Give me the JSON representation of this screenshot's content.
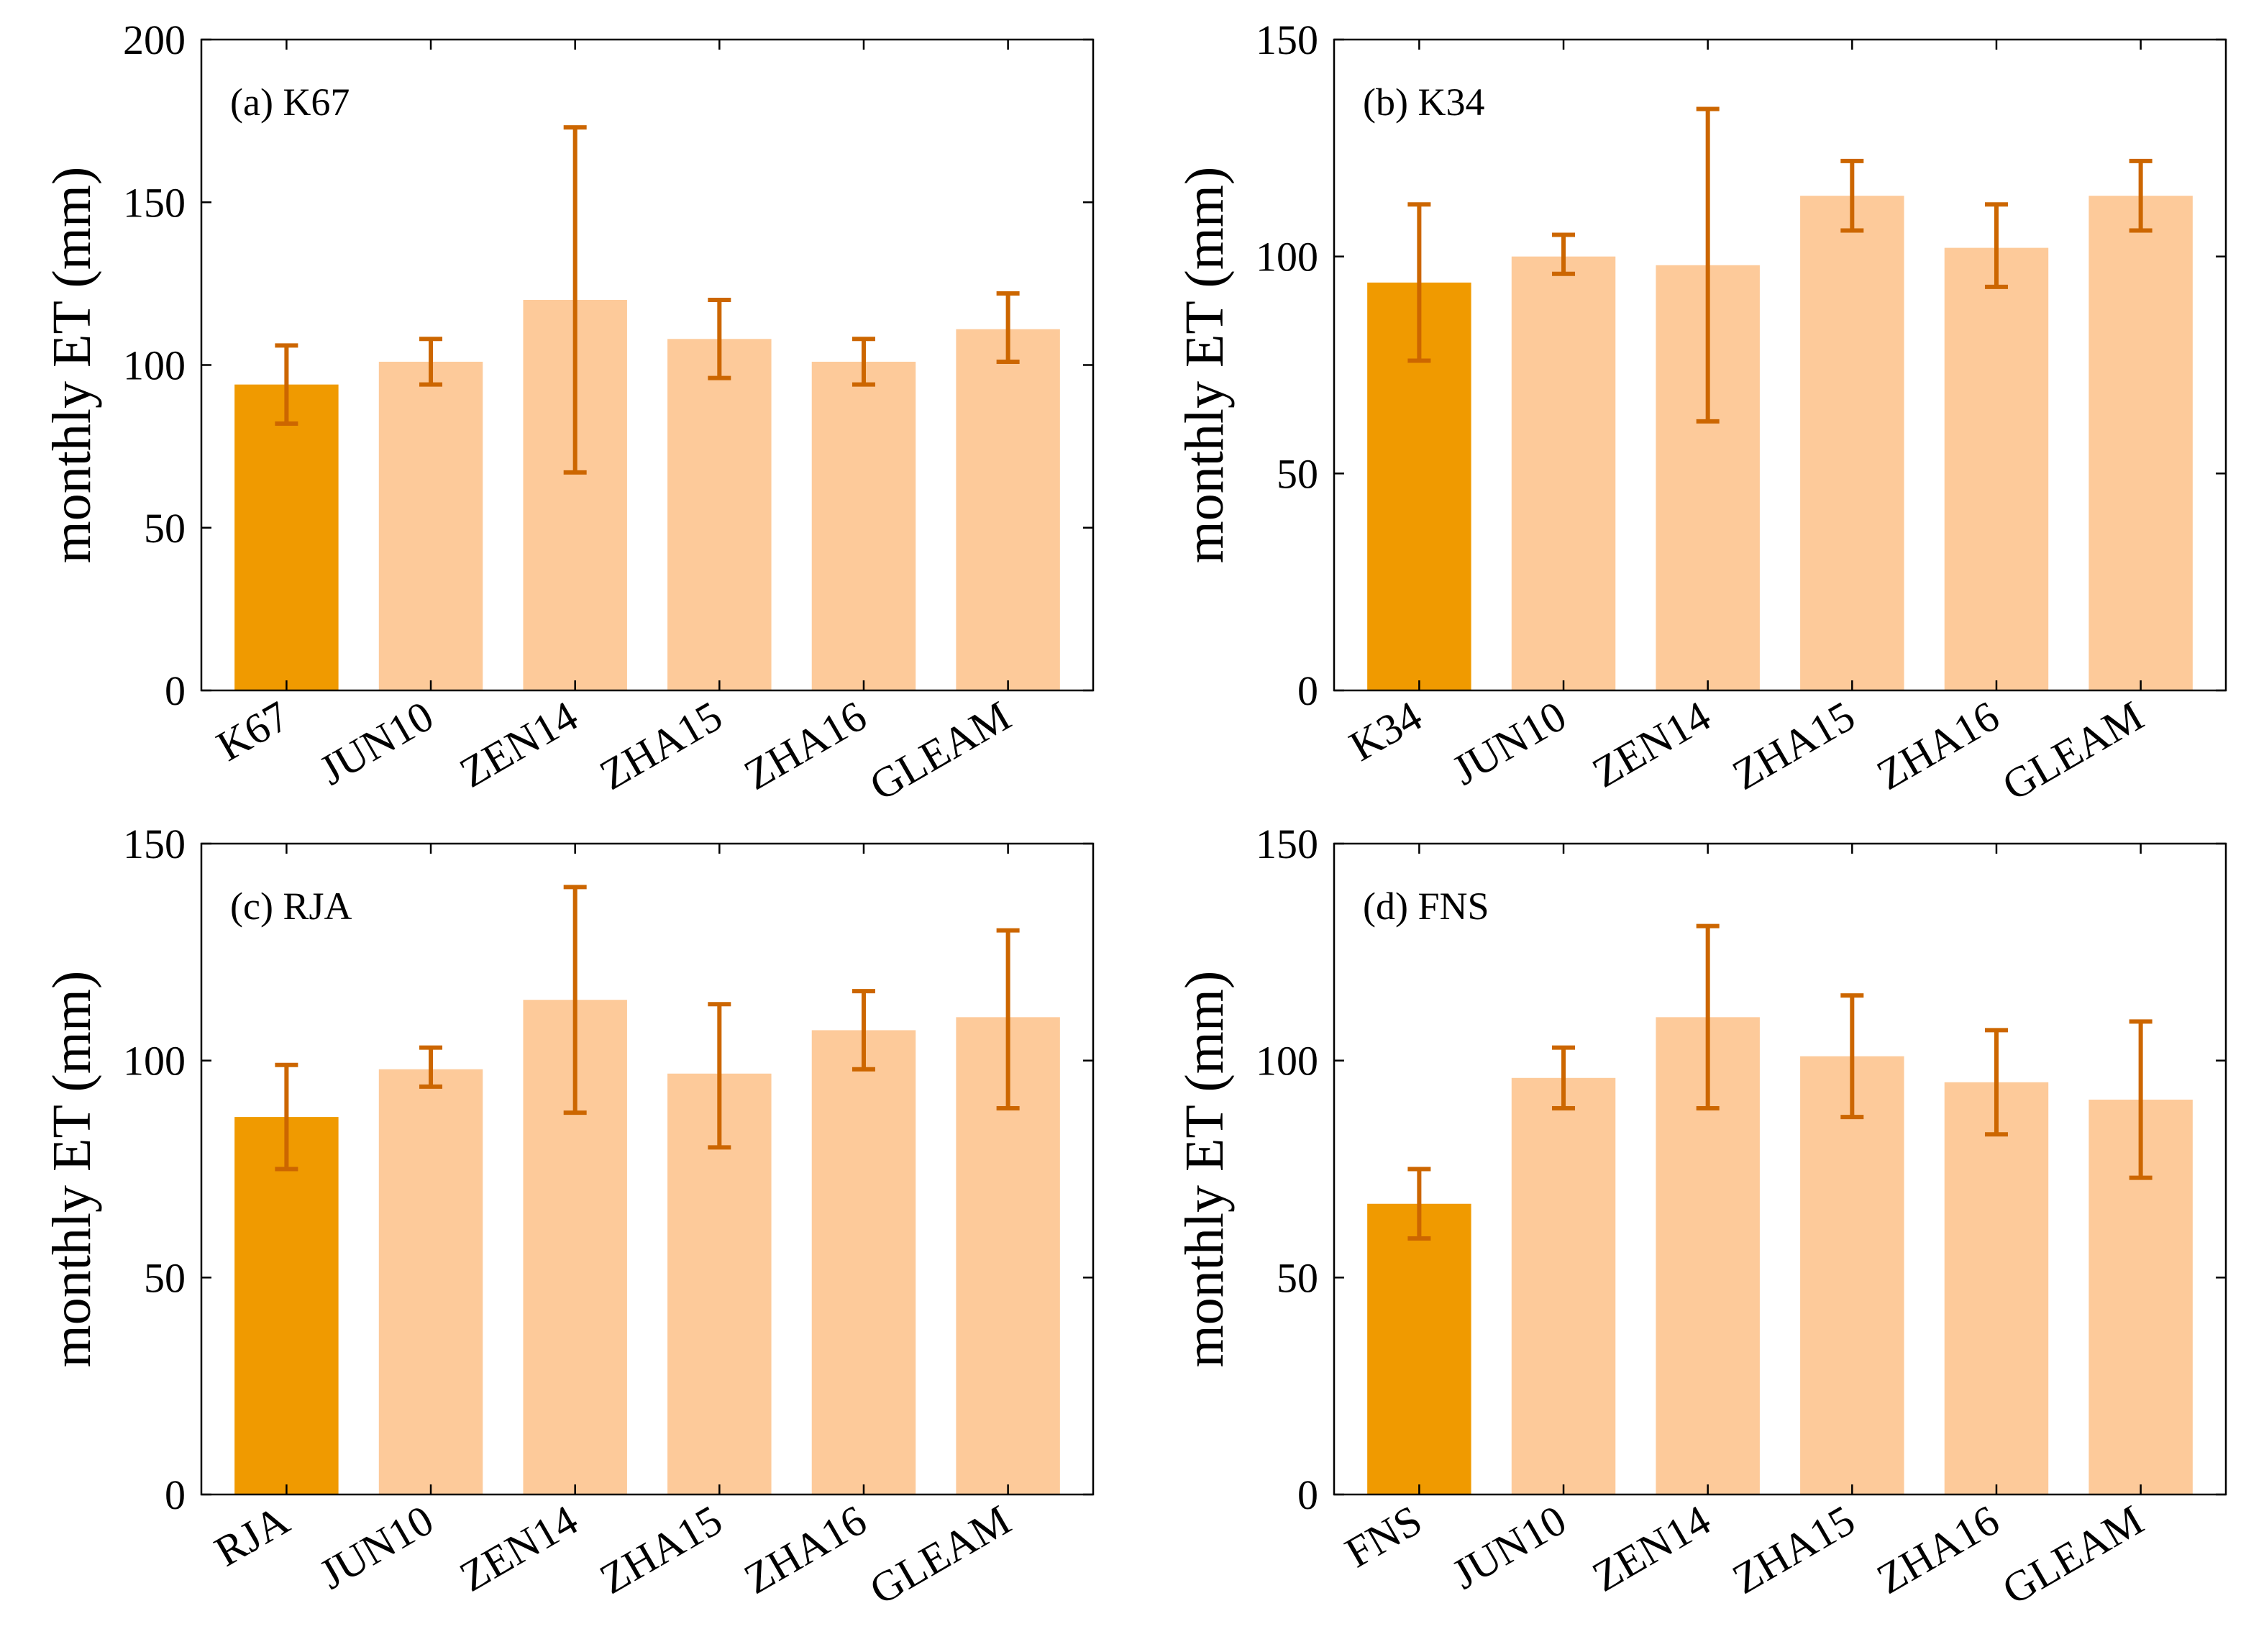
{
  "figure": {
    "colors": {
      "observed": "#f09a00",
      "product": "#fdca9a",
      "errorbar": "#cc6600"
    }
  },
  "chart_data": [
    {
      "type": "bar",
      "title": "(a) K67",
      "ylabel": "monthly ET (mm)",
      "xlabel": "",
      "ylim": [
        0,
        200
      ],
      "yticks": [
        0,
        50,
        100,
        150,
        200
      ],
      "categories": [
        "K67",
        "JUN10",
        "ZEN14",
        "ZHA15",
        "ZHA16",
        "GLEAM"
      ],
      "values": [
        94,
        101,
        120,
        108,
        101,
        111
      ],
      "error_low": [
        82,
        94,
        67,
        96,
        94,
        101
      ],
      "error_high": [
        106,
        108,
        173,
        120,
        108,
        122
      ],
      "highlight_index": 0
    },
    {
      "type": "bar",
      "title": "(b) K34",
      "ylabel": "monthly ET (mm)",
      "xlabel": "",
      "ylim": [
        0,
        150
      ],
      "yticks": [
        0,
        50,
        100,
        150
      ],
      "categories": [
        "K34",
        "JUN10",
        "ZEN14",
        "ZHA15",
        "ZHA16",
        "GLEAM"
      ],
      "values": [
        94,
        100,
        98,
        114,
        102,
        114
      ],
      "error_low": [
        76,
        96,
        62,
        106,
        93,
        106
      ],
      "error_high": [
        112,
        105,
        134,
        122,
        112,
        122
      ],
      "highlight_index": 0
    },
    {
      "type": "bar",
      "title": "(c) RJA",
      "ylabel": "monthly ET (mm)",
      "xlabel": "",
      "ylim": [
        0,
        150
      ],
      "yticks": [
        0,
        50,
        100,
        150
      ],
      "categories": [
        "RJA",
        "JUN10",
        "ZEN14",
        "ZHA15",
        "ZHA16",
        "GLEAM"
      ],
      "values": [
        87,
        98,
        114,
        97,
        107,
        110
      ],
      "error_low": [
        75,
        94,
        88,
        80,
        98,
        89
      ],
      "error_high": [
        99,
        103,
        140,
        113,
        116,
        130
      ],
      "highlight_index": 0
    },
    {
      "type": "bar",
      "title": "(d) FNS",
      "ylabel": "monthly ET (mm)",
      "xlabel": "",
      "ylim": [
        0,
        150
      ],
      "yticks": [
        0,
        50,
        100,
        150
      ],
      "categories": [
        "FNS",
        "JUN10",
        "ZEN14",
        "ZHA15",
        "ZHA16",
        "GLEAM"
      ],
      "values": [
        67,
        96,
        110,
        101,
        95,
        91
      ],
      "error_low": [
        59,
        89,
        89,
        87,
        83,
        73
      ],
      "error_high": [
        75,
        103,
        131,
        115,
        107,
        109
      ],
      "highlight_index": 0
    }
  ]
}
